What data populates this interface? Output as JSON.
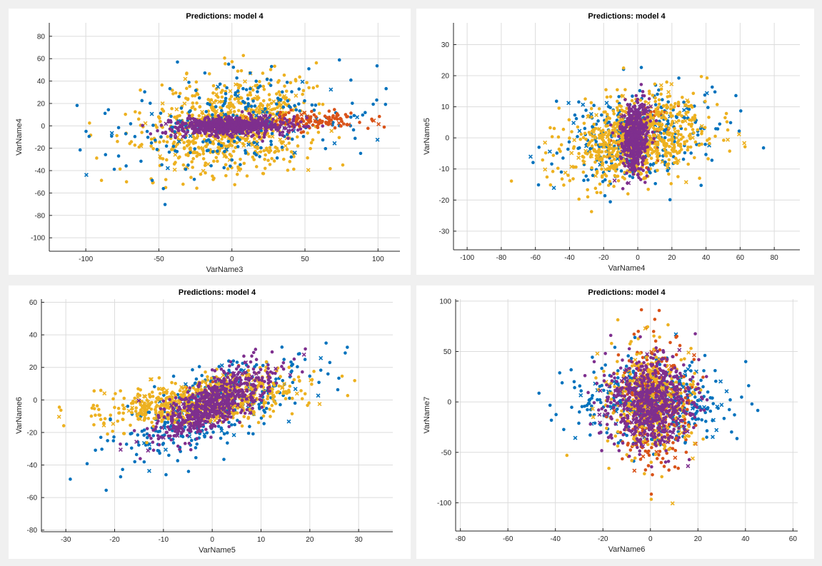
{
  "colors": {
    "blue": "#0072BD",
    "orange": "#D95319",
    "yellow": "#EDB120",
    "purple": "#7E2F8E"
  },
  "chart_data": [
    {
      "type": "scatter",
      "title": "Predictions: model 4",
      "xlabel": "VarName3",
      "ylabel": "VarName4",
      "xlim": [
        -125,
        115
      ],
      "ylim": [
        -112,
        92
      ],
      "xticks": [
        -100,
        -50,
        0,
        50,
        100
      ],
      "yticks": [
        -100,
        -80,
        -60,
        -40,
        -20,
        0,
        20,
        40,
        60,
        80
      ],
      "grid": true,
      "series": [
        {
          "color": "yellow",
          "center": [
            0,
            0
          ],
          "spread": [
            28,
            22
          ],
          "count": 800,
          "corr": 0.2
        },
        {
          "color": "blue",
          "center": [
            0,
            0
          ],
          "spread": [
            45,
            22
          ],
          "count": 260,
          "corr": 0.3
        },
        {
          "color": "orange",
          "center": [
            55,
            5
          ],
          "spread": [
            18,
            4
          ],
          "count": 120,
          "corr": 0.1
        },
        {
          "color": "purple",
          "center": [
            0,
            0
          ],
          "spread": [
            20,
            4
          ],
          "count": 600,
          "corr": 0.1
        }
      ]
    },
    {
      "type": "scatter",
      "title": "Predictions: model 4",
      "xlabel": "VarName4",
      "ylabel": "VarName5",
      "xlim": [
        -108,
        95
      ],
      "ylim": [
        -36,
        37
      ],
      "xticks": [
        -100,
        -80,
        -60,
        -40,
        -20,
        0,
        20,
        40,
        60,
        80
      ],
      "yticks": [
        -30,
        -20,
        -10,
        0,
        10,
        20,
        30
      ],
      "grid": true,
      "series": [
        {
          "color": "blue",
          "center": [
            0,
            0
          ],
          "spread": [
            22,
            8
          ],
          "count": 350,
          "corr": 0.3
        },
        {
          "color": "orange",
          "center": [
            5,
            2
          ],
          "spread": [
            8,
            5
          ],
          "count": 40,
          "corr": 0.2
        },
        {
          "color": "yellow",
          "center": [
            0,
            0
          ],
          "spread": [
            20,
            7
          ],
          "count": 800,
          "corr": 0.3
        },
        {
          "color": "purple",
          "center": [
            -2,
            0
          ],
          "spread": [
            4,
            6
          ],
          "count": 450,
          "corr": 0.2
        }
      ]
    },
    {
      "type": "scatter",
      "title": "Predictions: model 4",
      "xlabel": "VarName5",
      "ylabel": "VarName6",
      "xlim": [
        -35,
        37
      ],
      "ylim": [
        -81,
        62
      ],
      "xticks": [
        -30,
        -20,
        -10,
        0,
        10,
        20,
        30
      ],
      "yticks": [
        -80,
        -60,
        -40,
        -20,
        0,
        20,
        40,
        60
      ],
      "grid": true,
      "series": [
        {
          "color": "blue",
          "center": [
            0,
            -5
          ],
          "spread": [
            9,
            16
          ],
          "count": 380,
          "corr": 0.65
        },
        {
          "color": "orange",
          "center": [
            2,
            0
          ],
          "spread": [
            6,
            12
          ],
          "count": 25,
          "corr": 0.6
        },
        {
          "color": "yellow",
          "center": [
            -2,
            0
          ],
          "spread": [
            10,
            8
          ],
          "count": 700,
          "corr": 0.5
        },
        {
          "color": "purple",
          "center": [
            0,
            -2
          ],
          "spread": [
            6,
            12
          ],
          "count": 650,
          "corr": 0.75
        }
      ]
    },
    {
      "type": "scatter",
      "title": "Predictions: model 4",
      "xlabel": "VarName6",
      "ylabel": "VarName7",
      "xlim": [
        -82,
        62
      ],
      "ylim": [
        -128,
        102
      ],
      "xticks": [
        -80,
        -60,
        -40,
        -20,
        0,
        20,
        40,
        60
      ],
      "yticks": [
        -100,
        -50,
        0,
        50,
        100
      ],
      "grid": true,
      "series": [
        {
          "color": "blue",
          "center": [
            0,
            0
          ],
          "spread": [
            17,
            20
          ],
          "count": 420,
          "corr": 0.0
        },
        {
          "color": "orange",
          "center": [
            2,
            -5
          ],
          "spread": [
            7,
            32
          ],
          "count": 320,
          "corr": 0.0
        },
        {
          "color": "yellow",
          "center": [
            0,
            0
          ],
          "spread": [
            9,
            28
          ],
          "count": 380,
          "corr": 0.0
        },
        {
          "color": "purple",
          "center": [
            0,
            0
          ],
          "spread": [
            9,
            22
          ],
          "count": 650,
          "corr": 0.0
        }
      ]
    }
  ]
}
